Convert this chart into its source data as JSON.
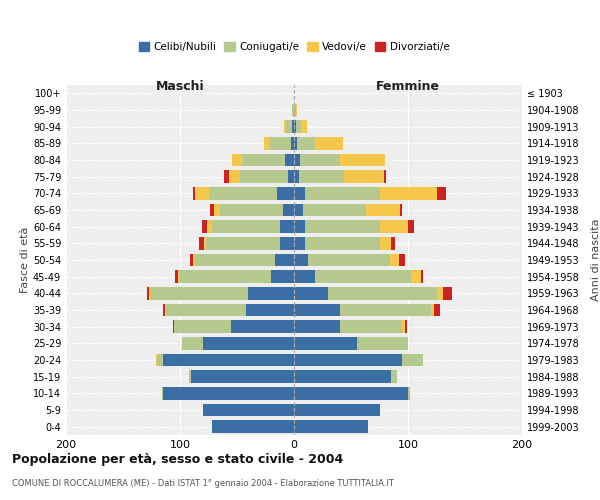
{
  "age_groups": [
    "0-4",
    "5-9",
    "10-14",
    "15-19",
    "20-24",
    "25-29",
    "30-34",
    "35-39",
    "40-44",
    "45-49",
    "50-54",
    "55-59",
    "60-64",
    "65-69",
    "70-74",
    "75-79",
    "80-84",
    "85-89",
    "90-94",
    "95-99",
    "100+"
  ],
  "birth_years": [
    "1999-2003",
    "1994-1998",
    "1989-1993",
    "1984-1988",
    "1979-1983",
    "1974-1978",
    "1969-1973",
    "1964-1968",
    "1959-1963",
    "1954-1958",
    "1949-1953",
    "1944-1948",
    "1939-1943",
    "1934-1938",
    "1929-1933",
    "1924-1928",
    "1919-1923",
    "1914-1918",
    "1909-1913",
    "1904-1908",
    "≤ 1903"
  ],
  "males": {
    "celibe": [
      72,
      80,
      115,
      90,
      115,
      80,
      55,
      42,
      40,
      20,
      17,
      12,
      12,
      10,
      15,
      5,
      8,
      3,
      2,
      0,
      0
    ],
    "coniugato": [
      0,
      0,
      1,
      2,
      5,
      18,
      50,
      70,
      85,
      80,
      70,
      65,
      60,
      55,
      60,
      42,
      38,
      18,
      5,
      2,
      0
    ],
    "vedovo": [
      0,
      0,
      0,
      0,
      1,
      0,
      0,
      1,
      2,
      2,
      2,
      2,
      4,
      5,
      12,
      10,
      8,
      5,
      2,
      0,
      0
    ],
    "divorziato": [
      0,
      0,
      0,
      0,
      0,
      0,
      1,
      2,
      2,
      2,
      2,
      4,
      5,
      4,
      2,
      4,
      0,
      0,
      0,
      0,
      0
    ]
  },
  "females": {
    "nubile": [
      65,
      75,
      100,
      85,
      95,
      55,
      40,
      40,
      30,
      18,
      12,
      10,
      10,
      8,
      10,
      4,
      5,
      3,
      2,
      0,
      0
    ],
    "coniugata": [
      0,
      0,
      2,
      5,
      18,
      45,
      55,
      80,
      95,
      85,
      72,
      65,
      65,
      55,
      65,
      40,
      35,
      15,
      4,
      2,
      0
    ],
    "vedova": [
      0,
      0,
      0,
      0,
      0,
      0,
      2,
      3,
      6,
      8,
      8,
      10,
      25,
      30,
      50,
      35,
      40,
      25,
      5,
      1,
      0
    ],
    "divorziata": [
      0,
      0,
      0,
      0,
      0,
      0,
      2,
      5,
      8,
      2,
      5,
      4,
      5,
      2,
      8,
      2,
      0,
      0,
      0,
      0,
      0
    ]
  },
  "colors": {
    "celibe": "#3b6ea5",
    "coniugato": "#b5c98e",
    "vedovo": "#f5c84c",
    "divorziato": "#cc2222"
  },
  "title": "Popolazione per età, sesso e stato civile - 2004",
  "subtitle": "COMUNE DI ROCCALUMERA (ME) - Dati ISTAT 1° gennaio 2004 - Elaborazione TUTTITALIA.IT",
  "xlabel_left": "Maschi",
  "xlabel_right": "Femmine",
  "ylabel_left": "Fasce di età",
  "ylabel_right": "Anni di nascita",
  "xlim": 200,
  "legend_labels": [
    "Celibi/Nubili",
    "Coniugati/e",
    "Vedovi/e",
    "Divorziati/e"
  ],
  "bg_color": "#eeeeee"
}
